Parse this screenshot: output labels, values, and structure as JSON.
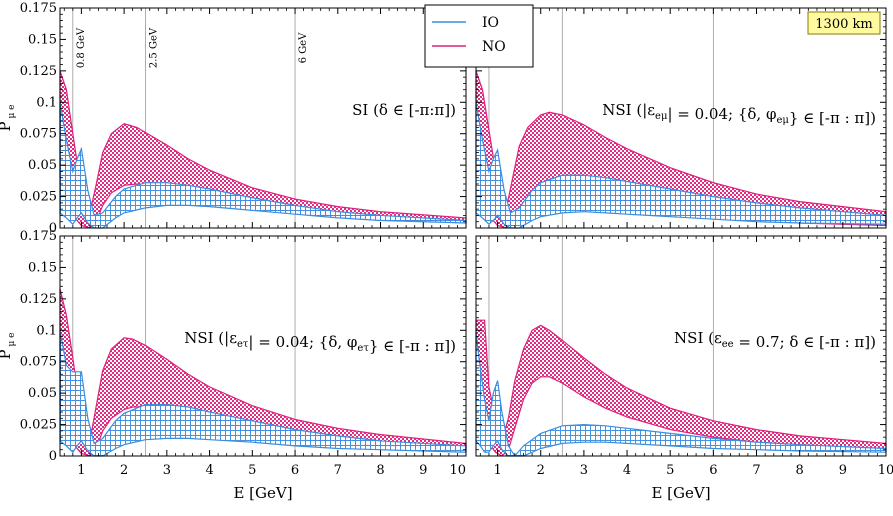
{
  "figure": {
    "baseline_label": "1300 km",
    "legend": [
      {
        "label": "IO",
        "color": "#3a8ee0"
      },
      {
        "label": "NO",
        "color": "#e0207a"
      }
    ],
    "colors": {
      "IO": "#3a8ee0",
      "NO": "#e0207a",
      "badge_bg": "#fffaa0",
      "badge_border": "#8a7a00"
    }
  },
  "chart_data": [
    {
      "id": "si",
      "type": "area",
      "annotation": "SI (δ ∈ [-π:π])",
      "xlabel": "",
      "ylabel": "P_{μe}",
      "ylabel_main": "P",
      "ylabel_sub": "μ e",
      "xlim": [
        0.5,
        10
      ],
      "ylim": [
        0,
        0.175
      ],
      "xticks": [
        "1",
        "2",
        "3",
        "4",
        "5",
        "6",
        "7",
        "8",
        "9",
        "10"
      ],
      "yticks": [
        "0",
        "0.025",
        "0.05",
        "0.075",
        "0.1",
        "0.125",
        "0.15",
        "0.175"
      ],
      "energy_lines": [
        {
          "x": 0.8,
          "label": "0.8 GeV"
        },
        {
          "x": 2.5,
          "label": "2.5 GeV"
        },
        {
          "x": 6,
          "label": "6 GeV"
        }
      ],
      "series": [
        {
          "name": "NO",
          "x": [
            0.5,
            0.65,
            0.8,
            1.0,
            1.2,
            1.35,
            1.5,
            1.7,
            2.0,
            2.3,
            2.5,
            3.0,
            3.5,
            4.0,
            5.0,
            6.0,
            7.0,
            8.0,
            10.0
          ],
          "upper": [
            0.125,
            0.11,
            0.075,
            0.03,
            0.012,
            0.035,
            0.06,
            0.075,
            0.083,
            0.08,
            0.076,
            0.066,
            0.055,
            0.046,
            0.032,
            0.023,
            0.017,
            0.013,
            0.008
          ],
          "lower": [
            0.04,
            0.025,
            0.01,
            0.002,
            0.0,
            0.005,
            0.018,
            0.028,
            0.034,
            0.035,
            0.034,
            0.03,
            0.026,
            0.022,
            0.016,
            0.012,
            0.009,
            0.007,
            0.004
          ]
        },
        {
          "name": "IO",
          "x": [
            0.5,
            0.65,
            0.8,
            0.9,
            1.0,
            1.15,
            1.3,
            1.5,
            1.8,
            2.0,
            2.5,
            3.0,
            3.5,
            4.0,
            5.0,
            6.0,
            7.0,
            8.0,
            10.0
          ],
          "upper": [
            0.1,
            0.07,
            0.045,
            0.055,
            0.063,
            0.03,
            0.01,
            0.012,
            0.025,
            0.031,
            0.036,
            0.036,
            0.034,
            0.031,
            0.024,
            0.018,
            0.013,
            0.01,
            0.006
          ],
          "lower": [
            0.012,
            0.008,
            0.003,
            0.008,
            0.012,
            0.004,
            0.0,
            0.0,
            0.008,
            0.012,
            0.016,
            0.018,
            0.018,
            0.017,
            0.014,
            0.011,
            0.008,
            0.006,
            0.004
          ]
        }
      ]
    },
    {
      "id": "nsi-emu",
      "type": "area",
      "annotation": "NSI (|ε_{eμ}| = 0.04; {δ, φ_{eμ}} ∈ [-π : π])",
      "xlabel": "",
      "ylabel": "",
      "xlim": [
        0.5,
        10
      ],
      "ylim": [
        0,
        0.175
      ],
      "xticks": [
        "1",
        "2",
        "3",
        "4",
        "5",
        "6",
        "7",
        "8",
        "9",
        "10"
      ],
      "yticks": [],
      "energy_lines": [
        {
          "x": 0.8,
          "label": ""
        },
        {
          "x": 2.5,
          "label": ""
        },
        {
          "x": 6,
          "label": ""
        }
      ],
      "series": [
        {
          "name": "NO",
          "x": [
            0.5,
            0.65,
            0.8,
            1.0,
            1.2,
            1.35,
            1.5,
            1.7,
            2.0,
            2.2,
            2.5,
            3.0,
            3.5,
            4.0,
            5.0,
            6.0,
            7.0,
            8.0,
            10.0
          ],
          "upper": [
            0.125,
            0.11,
            0.078,
            0.035,
            0.015,
            0.04,
            0.065,
            0.08,
            0.09,
            0.092,
            0.09,
            0.082,
            0.072,
            0.063,
            0.048,
            0.036,
            0.027,
            0.021,
            0.013
          ],
          "lower": [
            0.04,
            0.025,
            0.01,
            0.002,
            0.0,
            0.005,
            0.015,
            0.024,
            0.03,
            0.031,
            0.03,
            0.026,
            0.022,
            0.018,
            0.012,
            0.008,
            0.006,
            0.004,
            0.002
          ]
        },
        {
          "name": "IO",
          "x": [
            0.5,
            0.65,
            0.8,
            0.9,
            1.0,
            1.15,
            1.3,
            1.5,
            1.8,
            2.0,
            2.5,
            3.0,
            3.5,
            4.0,
            5.0,
            6.0,
            7.0,
            8.0,
            10.0
          ],
          "upper": [
            0.1,
            0.07,
            0.045,
            0.055,
            0.062,
            0.03,
            0.012,
            0.016,
            0.03,
            0.036,
            0.042,
            0.042,
            0.04,
            0.037,
            0.031,
            0.025,
            0.02,
            0.016,
            0.01
          ],
          "lower": [
            0.012,
            0.008,
            0.003,
            0.006,
            0.01,
            0.003,
            0.0,
            0.0,
            0.006,
            0.009,
            0.012,
            0.013,
            0.012,
            0.011,
            0.009,
            0.007,
            0.005,
            0.004,
            0.003
          ]
        }
      ]
    },
    {
      "id": "nsi-etau",
      "type": "area",
      "annotation": "NSI (|ε_{eτ}| = 0.04; {δ, φ_{eτ}} ∈ [-π : π])",
      "xlabel": "E [GeV]",
      "ylabel": "P_{μe}",
      "ylabel_main": "P",
      "ylabel_sub": "μ e",
      "xlim": [
        0.5,
        10
      ],
      "ylim": [
        0,
        0.175
      ],
      "xticks": [
        "1",
        "2",
        "3",
        "4",
        "5",
        "6",
        "7",
        "8",
        "9",
        "10"
      ],
      "yticks": [
        "0",
        "0.025",
        "0.05",
        "0.075",
        "0.1",
        "0.125",
        "0.15",
        "0.175"
      ],
      "energy_lines": [
        {
          "x": 0.8,
          "label": ""
        },
        {
          "x": 2.5,
          "label": ""
        },
        {
          "x": 6,
          "label": ""
        }
      ],
      "series": [
        {
          "name": "NO",
          "x": [
            0.5,
            0.65,
            0.8,
            1.0,
            1.2,
            1.35,
            1.5,
            1.7,
            2.0,
            2.2,
            2.5,
            3.0,
            3.5,
            4.0,
            5.0,
            6.0,
            7.0,
            8.0,
            10.0
          ],
          "upper": [
            0.133,
            0.112,
            0.078,
            0.03,
            0.012,
            0.04,
            0.068,
            0.085,
            0.094,
            0.093,
            0.088,
            0.077,
            0.065,
            0.055,
            0.04,
            0.029,
            0.022,
            0.017,
            0.01
          ],
          "lower": [
            0.04,
            0.025,
            0.01,
            0.002,
            0.0,
            0.006,
            0.02,
            0.03,
            0.037,
            0.039,
            0.039,
            0.035,
            0.03,
            0.026,
            0.019,
            0.014,
            0.011,
            0.008,
            0.005
          ]
        },
        {
          "name": "IO",
          "x": [
            0.5,
            0.65,
            0.8,
            0.9,
            1.0,
            1.15,
            1.3,
            1.5,
            1.8,
            2.0,
            2.5,
            3.0,
            3.5,
            4.0,
            5.0,
            6.0,
            7.0,
            8.0,
            10.0
          ],
          "upper": [
            0.1,
            0.072,
            0.067,
            0.067,
            0.067,
            0.03,
            0.01,
            0.014,
            0.028,
            0.034,
            0.041,
            0.041,
            0.039,
            0.035,
            0.028,
            0.021,
            0.016,
            0.012,
            0.008
          ],
          "lower": [
            0.012,
            0.008,
            0.003,
            0.008,
            0.012,
            0.004,
            0.0,
            0.0,
            0.006,
            0.009,
            0.013,
            0.014,
            0.014,
            0.013,
            0.011,
            0.008,
            0.006,
            0.005,
            0.003
          ]
        }
      ]
    },
    {
      "id": "nsi-ee",
      "type": "area",
      "annotation": "NSI (ε_{ee} = 0.7; δ ∈ [-π : π])",
      "xlabel": "E [GeV]",
      "ylabel": "",
      "xlim": [
        0.5,
        10
      ],
      "ylim": [
        0,
        0.175
      ],
      "xticks": [
        "1",
        "2",
        "3",
        "4",
        "5",
        "6",
        "7",
        "8",
        "9",
        "10"
      ],
      "yticks": [],
      "energy_lines": [
        {
          "x": 0.8,
          "label": ""
        },
        {
          "x": 2.5,
          "label": ""
        },
        {
          "x": 6,
          "label": ""
        }
      ],
      "series": [
        {
          "name": "NO",
          "x": [
            0.5,
            0.6,
            0.7,
            0.8,
            0.95,
            1.1,
            1.25,
            1.4,
            1.6,
            1.8,
            2.0,
            2.2,
            2.5,
            3.0,
            3.5,
            4.0,
            5.0,
            6.0,
            7.0,
            8.0,
            10.0
          ],
          "upper": [
            0.108,
            0.108,
            0.108,
            0.055,
            0.03,
            0.012,
            0.03,
            0.06,
            0.085,
            0.1,
            0.104,
            0.1,
            0.092,
            0.078,
            0.065,
            0.054,
            0.038,
            0.028,
            0.021,
            0.016,
            0.01
          ],
          "lower": [
            0.055,
            0.05,
            0.035,
            0.01,
            0.003,
            0.0,
            0.005,
            0.022,
            0.045,
            0.058,
            0.063,
            0.063,
            0.058,
            0.047,
            0.038,
            0.031,
            0.021,
            0.015,
            0.011,
            0.009,
            0.005
          ]
        },
        {
          "name": "IO",
          "x": [
            0.5,
            0.6,
            0.7,
            0.8,
            0.9,
            1.0,
            1.1,
            1.25,
            1.4,
            1.6,
            2.0,
            2.5,
            3.0,
            3.5,
            4.0,
            5.0,
            6.0,
            7.0,
            8.0,
            10.0
          ],
          "upper": [
            0.098,
            0.07,
            0.045,
            0.028,
            0.05,
            0.06,
            0.035,
            0.008,
            0.0,
            0.008,
            0.018,
            0.024,
            0.025,
            0.024,
            0.022,
            0.018,
            0.014,
            0.011,
            0.009,
            0.006
          ],
          "lower": [
            0.012,
            0.008,
            0.003,
            0.003,
            0.008,
            0.012,
            0.005,
            0.0,
            0.0,
            0.0,
            0.006,
            0.01,
            0.011,
            0.011,
            0.01,
            0.008,
            0.006,
            0.005,
            0.004,
            0.003
          ]
        }
      ]
    }
  ]
}
